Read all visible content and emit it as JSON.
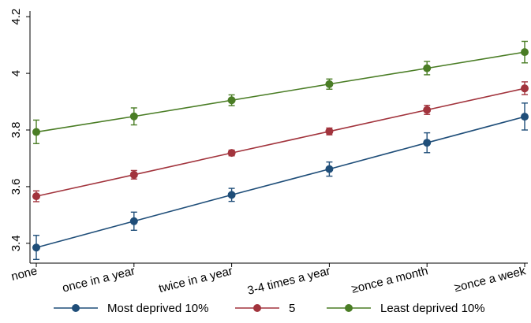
{
  "chart_data": {
    "type": "line",
    "title": "",
    "xlabel": "",
    "ylabel": "",
    "categories": [
      "none",
      "once in a year",
      "twice in a year",
      "3-4 times a year",
      "≥once a month",
      "≥once a week"
    ],
    "ylim": [
      3.33,
      4.22
    ],
    "yticks": [
      3.4,
      3.6,
      3.8,
      4,
      4.2
    ],
    "ytick_labels": [
      "3.4",
      "3.6",
      "3.8",
      "4",
      "4.2"
    ],
    "grid": false,
    "legend_position": "bottom",
    "error_bars": true,
    "series": [
      {
        "name": "Most deprived 10%",
        "color": "#1f4e79",
        "values": [
          3.385,
          3.478,
          3.571,
          3.662,
          3.755,
          3.847
        ],
        "lower": [
          3.343,
          3.446,
          3.548,
          3.637,
          3.72,
          3.8
        ],
        "upper": [
          3.428,
          3.51,
          3.594,
          3.687,
          3.79,
          3.895
        ]
      },
      {
        "name": "5",
        "color": "#a2343d",
        "values": [
          3.566,
          3.642,
          3.719,
          3.795,
          3.871,
          3.947
        ],
        "lower": [
          3.547,
          3.627,
          3.709,
          3.783,
          3.855,
          3.925
        ],
        "upper": [
          3.585,
          3.657,
          3.729,
          3.807,
          3.887,
          3.97
        ]
      },
      {
        "name": "Least deprived 10%",
        "color": "#4a7d25",
        "values": [
          3.793,
          3.848,
          3.905,
          3.962,
          4.018,
          4.075
        ],
        "lower": [
          3.752,
          3.818,
          3.886,
          3.944,
          3.995,
          4.037
        ],
        "upper": [
          3.835,
          3.878,
          3.924,
          3.98,
          4.042,
          4.113
        ]
      }
    ]
  }
}
